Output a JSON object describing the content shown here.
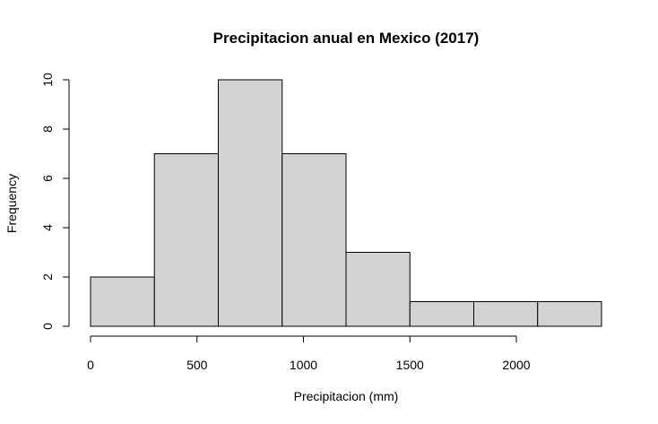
{
  "chart_data": {
    "type": "histogram",
    "title": "Precipitacion anual en Mexico (2017)",
    "xlabel": "Precipitacion (mm)",
    "ylabel": "Frequency",
    "bins": [
      {
        "start": 0,
        "end": 300,
        "count": 2
      },
      {
        "start": 300,
        "end": 600,
        "count": 7
      },
      {
        "start": 600,
        "end": 900,
        "count": 10
      },
      {
        "start": 900,
        "end": 1200,
        "count": 7
      },
      {
        "start": 1200,
        "end": 1500,
        "count": 3
      },
      {
        "start": 1500,
        "end": 1800,
        "count": 1
      },
      {
        "start": 1800,
        "end": 2100,
        "count": 1
      },
      {
        "start": 2100,
        "end": 2400,
        "count": 1
      }
    ],
    "x_ticks": [
      0,
      500,
      1000,
      1500,
      2000
    ],
    "y_ticks": [
      0,
      2,
      4,
      6,
      8,
      10
    ],
    "xlim": [
      0,
      2400
    ],
    "ylim": [
      0,
      10
    ],
    "bar_color": "#d3d3d3",
    "edge_color": "#000000",
    "grid": false
  }
}
